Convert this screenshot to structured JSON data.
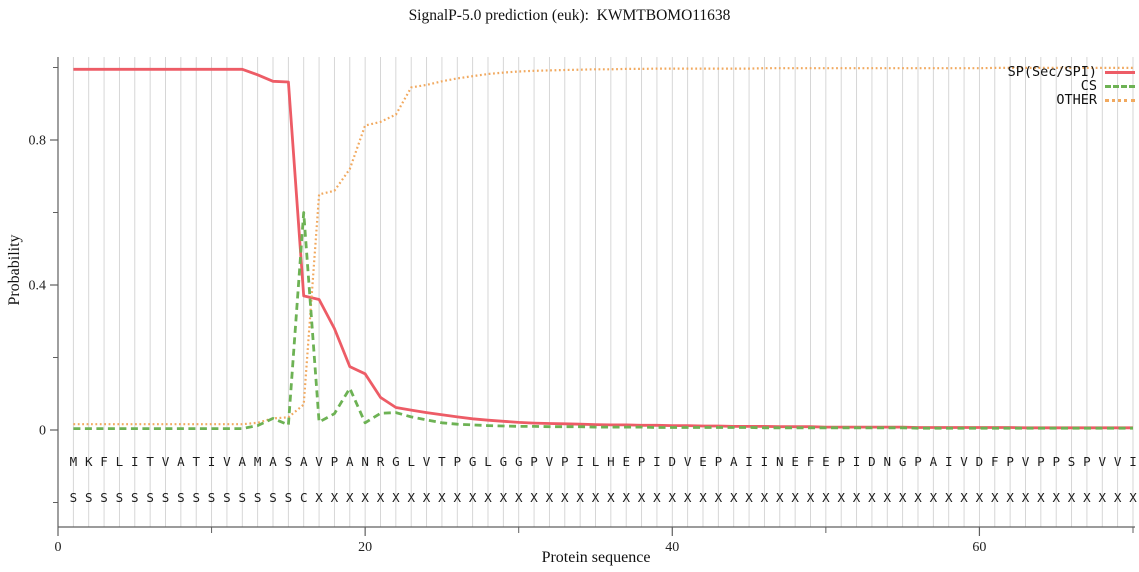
{
  "chart_data": {
    "type": "line",
    "title": "SignalP-5.0 prediction (euk):  KWMTBOMO11638",
    "xlabel": "Protein sequence",
    "ylabel": "Probability",
    "legend_position": "top-right",
    "grid": true,
    "xlim": [
      0,
      70.3
    ],
    "ylim": [
      -0.27,
      1.02
    ],
    "x_ticks_labeled": [
      0,
      20,
      40,
      60
    ],
    "x_ticks_minor": [
      10,
      30,
      50,
      70
    ],
    "y_ticks_labeled": [
      0,
      0.4,
      0.8
    ],
    "y_ticks_minor": [
      -0.2,
      0.2,
      0.6,
      1.0
    ],
    "sequence": "MKFLITVATIVAMASAVPANRGLVTPGLGGPVPILHEPIDVEPAIINEFEPIDNGPAIVDFPVPPSPVVI",
    "annotation": "SSSSSSSSSSSSSSSCXXXXXXXXXXXXXXXXXXXXXXXXXXXXXXXXXXXXXXXXXXXXXXXXXXXXXX",
    "series": [
      {
        "name": "SP(Sec/SPI)",
        "color": "#ed5c66",
        "style": "solid",
        "values": [
          0.995,
          0.995,
          0.995,
          0.995,
          0.995,
          0.995,
          0.995,
          0.995,
          0.995,
          0.995,
          0.995,
          0.995,
          0.98,
          0.962,
          0.96,
          0.37,
          0.36,
          0.28,
          0.175,
          0.155,
          0.09,
          0.062,
          0.055,
          0.048,
          0.042,
          0.036,
          0.031,
          0.027,
          0.024,
          0.021,
          0.019,
          0.018,
          0.017,
          0.016,
          0.015,
          0.014,
          0.014,
          0.013,
          0.013,
          0.012,
          0.012,
          0.011,
          0.011,
          0.01,
          0.01,
          0.01,
          0.009,
          0.009,
          0.009,
          0.008,
          0.008,
          0.008,
          0.008,
          0.008,
          0.008,
          0.007,
          0.007,
          0.007,
          0.007,
          0.007,
          0.007,
          0.007,
          0.006,
          0.006,
          0.006,
          0.006,
          0.006,
          0.006,
          0.006,
          0.006
        ]
      },
      {
        "name": "CS",
        "color": "#6db254",
        "style": "dashed",
        "values": [
          0.004,
          0.004,
          0.004,
          0.004,
          0.004,
          0.004,
          0.004,
          0.004,
          0.004,
          0.004,
          0.004,
          0.004,
          0.012,
          0.032,
          0.014,
          0.6,
          0.022,
          0.045,
          0.115,
          0.02,
          0.046,
          0.048,
          0.036,
          0.028,
          0.02,
          0.016,
          0.014,
          0.012,
          0.011,
          0.01,
          0.01,
          0.009,
          0.009,
          0.009,
          0.008,
          0.008,
          0.008,
          0.008,
          0.007,
          0.007,
          0.007,
          0.007,
          0.007,
          0.007,
          0.007,
          0.006,
          0.006,
          0.006,
          0.006,
          0.006,
          0.006,
          0.006,
          0.006,
          0.006,
          0.006,
          0.005,
          0.005,
          0.005,
          0.005,
          0.005,
          0.005,
          0.005,
          0.005,
          0.005,
          0.005,
          0.005,
          0.005,
          0.005,
          0.005,
          0.005
        ]
      },
      {
        "name": "OTHER",
        "color": "#f1a95f",
        "style": "dotted",
        "values": [
          0.016,
          0.016,
          0.016,
          0.016,
          0.016,
          0.016,
          0.016,
          0.016,
          0.016,
          0.016,
          0.016,
          0.016,
          0.02,
          0.032,
          0.035,
          0.07,
          0.65,
          0.66,
          0.72,
          0.84,
          0.85,
          0.87,
          0.945,
          0.952,
          0.962,
          0.97,
          0.976,
          0.982,
          0.986,
          0.989,
          0.991,
          0.992,
          0.993,
          0.994,
          0.995,
          0.995,
          0.996,
          0.996,
          0.997,
          0.997,
          0.997,
          0.997,
          0.997,
          0.997,
          0.997,
          0.998,
          0.998,
          0.998,
          0.998,
          0.998,
          0.998,
          0.998,
          0.998,
          0.998,
          0.998,
          0.998,
          0.998,
          0.998,
          0.998,
          0.998,
          0.999,
          0.999,
          0.999,
          0.999,
          0.999,
          0.999,
          0.999,
          0.999,
          0.999,
          0.999
        ]
      }
    ]
  }
}
